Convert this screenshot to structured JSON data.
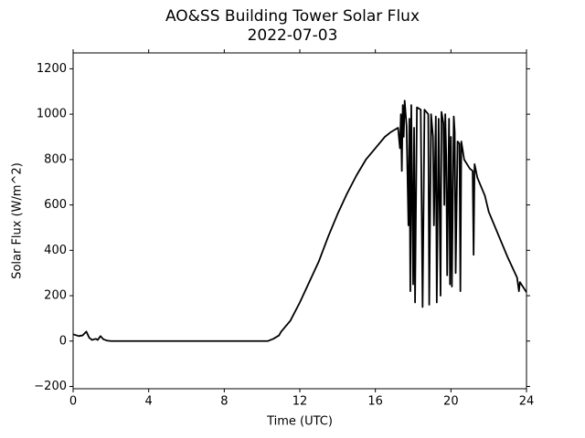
{
  "chart_data": {
    "type": "line",
    "title": "AO&SS Building Tower Solar Flux",
    "subtitle": "2022-07-03",
    "xlabel": "Time (UTC)",
    "ylabel": "Solar Flux (W/m^2)",
    "color": "#000000",
    "xlim": [
      0,
      24
    ],
    "xticks": [
      0,
      4,
      8,
      12,
      16,
      20,
      24
    ],
    "ylim": [
      -210,
      1270
    ],
    "yticks": [
      {
        "value": -200,
        "label": "−200"
      },
      0,
      200,
      400,
      600,
      800,
      1000,
      1200
    ],
    "x": [
      0,
      0.3,
      0.5,
      0.7,
      0.85,
      1.0,
      1.2,
      1.3,
      1.45,
      1.6,
      1.8,
      2.0,
      10.3,
      10.6,
      10.9,
      11.0,
      11.5,
      12,
      12.5,
      13,
      13.5,
      14,
      14.5,
      15,
      15.5,
      16,
      16.5,
      16.8,
      17.0,
      17.2,
      17.3,
      17.35,
      17.4,
      17.45,
      17.5,
      17.55,
      17.65,
      17.75,
      17.8,
      17.85,
      17.9,
      18.0,
      18.05,
      18.1,
      18.2,
      18.4,
      18.5,
      18.6,
      18.8,
      18.85,
      18.95,
      19.05,
      19.1,
      19.2,
      19.25,
      19.35,
      19.45,
      19.5,
      19.6,
      19.65,
      19.7,
      19.75,
      19.8,
      19.9,
      19.95,
      20.0,
      20.05,
      20.15,
      20.2,
      20.25,
      20.35,
      20.45,
      20.5,
      20.55,
      20.7,
      21.0,
      21.15,
      21.2,
      21.25,
      21.4,
      21.6,
      21.8,
      22,
      22.5,
      23,
      23.5,
      23.6,
      23.65,
      24
    ],
    "values": [
      30,
      22,
      25,
      42,
      15,
      5,
      10,
      5,
      22,
      8,
      2,
      0,
      0,
      10,
      25,
      40,
      90,
      170,
      260,
      350,
      460,
      560,
      650,
      730,
      800,
      850,
      900,
      920,
      930,
      940,
      850,
      1000,
      750,
      1040,
      900,
      1060,
      950,
      510,
      980,
      220,
      1040,
      250,
      940,
      170,
      1030,
      1020,
      150,
      1020,
      1000,
      160,
      1000,
      900,
      510,
      990,
      170,
      980,
      200,
      1010,
      960,
      600,
      1000,
      820,
      290,
      980,
      250,
      900,
      240,
      990,
      920,
      300,
      880,
      870,
      220,
      880,
      800,
      760,
      750,
      380,
      780,
      720,
      680,
      640,
      570,
      470,
      370,
      280,
      220,
      260,
      215
    ],
    "grid": false
  }
}
